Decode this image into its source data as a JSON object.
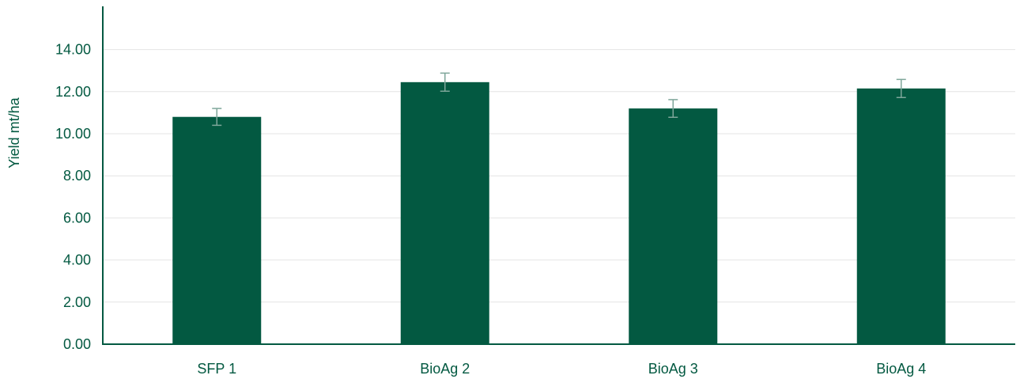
{
  "colors": {
    "bar": "#035941",
    "axis": "#035941",
    "text": "#035941",
    "grid": "#e4e4e4",
    "error_bar": "#7ea69a"
  },
  "chart_data": {
    "type": "bar",
    "title": "",
    "xlabel": "",
    "ylabel": "Yield mt/ha",
    "categories": [
      "SFP 1",
      "BioAg 2",
      "BioAg 3",
      "BioAg 4"
    ],
    "values": [
      10.8,
      12.45,
      11.2,
      12.15
    ],
    "error": [
      0.4,
      0.43,
      0.42,
      0.43
    ],
    "ylim": [
      0,
      16
    ],
    "y_ticks": [
      0,
      2,
      4,
      6,
      8,
      10,
      12,
      14
    ],
    "y_tick_labels": [
      "0.00",
      "2.00",
      "4.00",
      "6.00",
      "8.00",
      "10.00",
      "12.00",
      "14.00"
    ],
    "grid": true,
    "legend": "none"
  }
}
